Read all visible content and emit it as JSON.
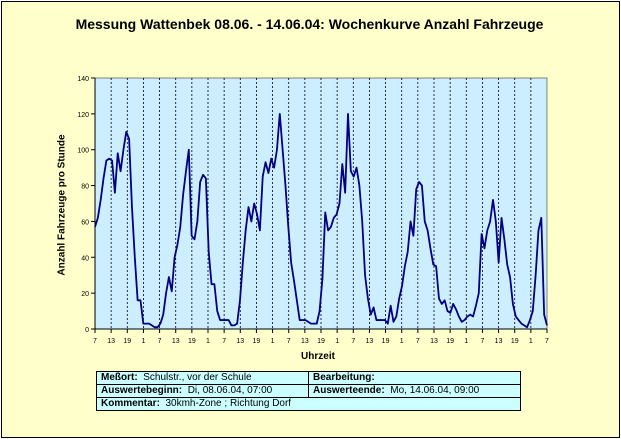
{
  "title": "Messung Wattenbek 08.06. - 14.06.04: Wochenkurve Anzahl Fahrzeuge",
  "colors": {
    "background": "#ffffcc",
    "plot": "#cceeff",
    "line": "#000080",
    "table": "#ccffff"
  },
  "chart_data": {
    "type": "line",
    "title": "Messung Wattenbek 08.06. - 14.06.04: Wochenkurve Anzahl Fahrzeuge",
    "xlabel": "Uhrzeit",
    "ylabel": "Anzahl Fahrzeuge pro Stunde",
    "ylim": [
      0,
      140
    ],
    "yticks": [
      0,
      20,
      40,
      60,
      80,
      100,
      120,
      140
    ],
    "xtick_labels": [
      "7",
      "13",
      "19",
      "1",
      "7",
      "13",
      "19",
      "1",
      "7",
      "13",
      "19",
      "1",
      "7",
      "13",
      "19",
      "1",
      "7",
      "13",
      "19",
      "1",
      "7",
      "13",
      "19",
      "1",
      "7",
      "13",
      "19",
      "1",
      "7"
    ],
    "grid": true,
    "series": [
      {
        "values": [
          57,
          62,
          72,
          84,
          94,
          95,
          94,
          76,
          98,
          88,
          100,
          110,
          106,
          68,
          40,
          16,
          16,
          3,
          3,
          3,
          2,
          1,
          1,
          3,
          8,
          20,
          29,
          21,
          40,
          47,
          57,
          75,
          88,
          100,
          52,
          50,
          60,
          82,
          86,
          84,
          43,
          25,
          25,
          10,
          5,
          5,
          5,
          5,
          2,
          2,
          3,
          16,
          37,
          55,
          68,
          60,
          70,
          64,
          55,
          85,
          93,
          87,
          95,
          90,
          100,
          120,
          100,
          80,
          57,
          37,
          27,
          16,
          5,
          5,
          5,
          4,
          3,
          3,
          3,
          10,
          28,
          65,
          55,
          57,
          62,
          64,
          70,
          92,
          76,
          120,
          88,
          85,
          90,
          80,
          60,
          30,
          17,
          8,
          12,
          5,
          5,
          5,
          5,
          3,
          13,
          4,
          7,
          17,
          24,
          35,
          43,
          60,
          52,
          78,
          82,
          80,
          60,
          55,
          45,
          36,
          35,
          17,
          14,
          16,
          10,
          9,
          14,
          11,
          7,
          4,
          5,
          7,
          8,
          7,
          13,
          20,
          53,
          45,
          55,
          60,
          72,
          60,
          37,
          62,
          50,
          36,
          29,
          14,
          7,
          5,
          3,
          2,
          1,
          5,
          10,
          30,
          55,
          62,
          8,
          2
        ]
      }
    ]
  },
  "info": {
    "messort_label": "Meßort:",
    "messort_value": "Schulstr., vor der Schule",
    "bearbeitung_label": "Bearbeitung:",
    "bearbeitung_value": "",
    "beginn_label": "Auswertebeginn:",
    "beginn_value": "Di, 08.06.04, 07:00",
    "ende_label": "Auswerteende:",
    "ende_value": "Mo, 14.06.04, 09:00",
    "kommentar_label": "Kommentar:",
    "kommentar_value": "30kmh-Zone ; Richtung Dorf"
  }
}
